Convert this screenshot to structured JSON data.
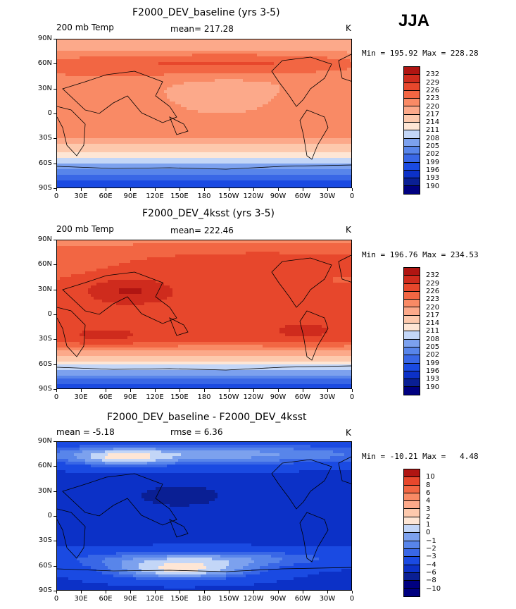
{
  "season": "JJA",
  "palette": {
    "warm": [
      "#fee6d5",
      "#fdc9ad",
      "#fca98a",
      "#f98a65",
      "#f26643",
      "#e7472c",
      "#cf2b1d",
      "#b01512",
      "#8b0a0b"
    ],
    "cool": [
      "#e2ecfb",
      "#c3d6f7",
      "#9fbcf2",
      "#7ca1ee",
      "#5885ea",
      "#3967e6",
      "#1a4ae2",
      "#0c31c7",
      "#0a1f94",
      "#000080"
    ],
    "land_outline": "#000000"
  },
  "chart_data": [
    {
      "type": "contour-map",
      "title": "F2000_DEV_baseline (yrs 3-5)",
      "left_label": "200 mb Temp",
      "center_label": "mean= 217.28",
      "right_label": "K",
      "min_max": "Min = 195.92 Max = 228.28",
      "stats": {
        "mean": 217.28,
        "min": 195.92,
        "max": 228.28,
        "units": "K"
      },
      "contour_levels": [
        190,
        193,
        196,
        199,
        202,
        205,
        208,
        211,
        214,
        217,
        220,
        223,
        226,
        229,
        232
      ],
      "level_labels": [
        "232",
        "229",
        "226",
        "223",
        "220",
        "217",
        "214",
        "211",
        "208",
        "205",
        "202",
        "199",
        "196",
        "193",
        "190"
      ],
      "lat_labels": [
        "90N",
        "60N",
        "30N",
        "0",
        "30S",
        "60S",
        "90S"
      ],
      "lon_labels": [
        "0",
        "30E",
        "60E",
        "90E",
        "120E",
        "150E",
        "180",
        "150W",
        "120W",
        "90W",
        "60W",
        "30W",
        "0"
      ]
    },
    {
      "type": "contour-map",
      "title": "F2000_DEV_4ksst (yrs 3-5)",
      "left_label": "200 mb Temp",
      "center_label": "mean= 222.46",
      "right_label": "K",
      "min_max": "Min = 196.76 Max = 234.53",
      "stats": {
        "mean": 222.46,
        "min": 196.76,
        "max": 234.53,
        "units": "K"
      },
      "contour_levels": [
        190,
        193,
        196,
        199,
        202,
        205,
        208,
        211,
        214,
        217,
        220,
        223,
        226,
        229,
        232
      ],
      "level_labels": [
        "232",
        "229",
        "226",
        "223",
        "220",
        "217",
        "214",
        "211",
        "208",
        "205",
        "202",
        "199",
        "196",
        "193",
        "190"
      ],
      "lat_labels": [
        "90N",
        "60N",
        "30N",
        "0",
        "30S",
        "60S",
        "90S"
      ],
      "lon_labels": [
        "0",
        "30E",
        "60E",
        "90E",
        "120E",
        "150E",
        "180",
        "150W",
        "120W",
        "90W",
        "60W",
        "30W",
        "0"
      ]
    },
    {
      "type": "contour-map",
      "title": "F2000_DEV_baseline - F2000_DEV_4ksst",
      "left_label": "mean =   -5.18",
      "center_label": "rmse =    6.36",
      "right_label": "K",
      "min_max": "Min = -10.21 Max =   4.48",
      "stats": {
        "mean": -5.18,
        "rmse": 6.36,
        "min": -10.21,
        "max": 4.48,
        "units": "K"
      },
      "contour_levels": [
        -10,
        -8,
        -6,
        -4,
        -3,
        -2,
        -1,
        0,
        1,
        2,
        3,
        4,
        6,
        8,
        10
      ],
      "level_labels": [
        "10",
        "8",
        "6",
        "4",
        "3",
        "2",
        "1",
        "0",
        "−1",
        "−2",
        "−3",
        "−4",
        "−6",
        "−8",
        "−10"
      ],
      "lat_labels": [
        "90N",
        "60N",
        "30N",
        "0",
        "30S",
        "60S",
        "90S"
      ],
      "lon_labels": [
        "0",
        "30E",
        "60E",
        "90E",
        "120E",
        "150E",
        "180",
        "150W",
        "120W",
        "90W",
        "60W",
        "30W",
        "0"
      ]
    }
  ]
}
